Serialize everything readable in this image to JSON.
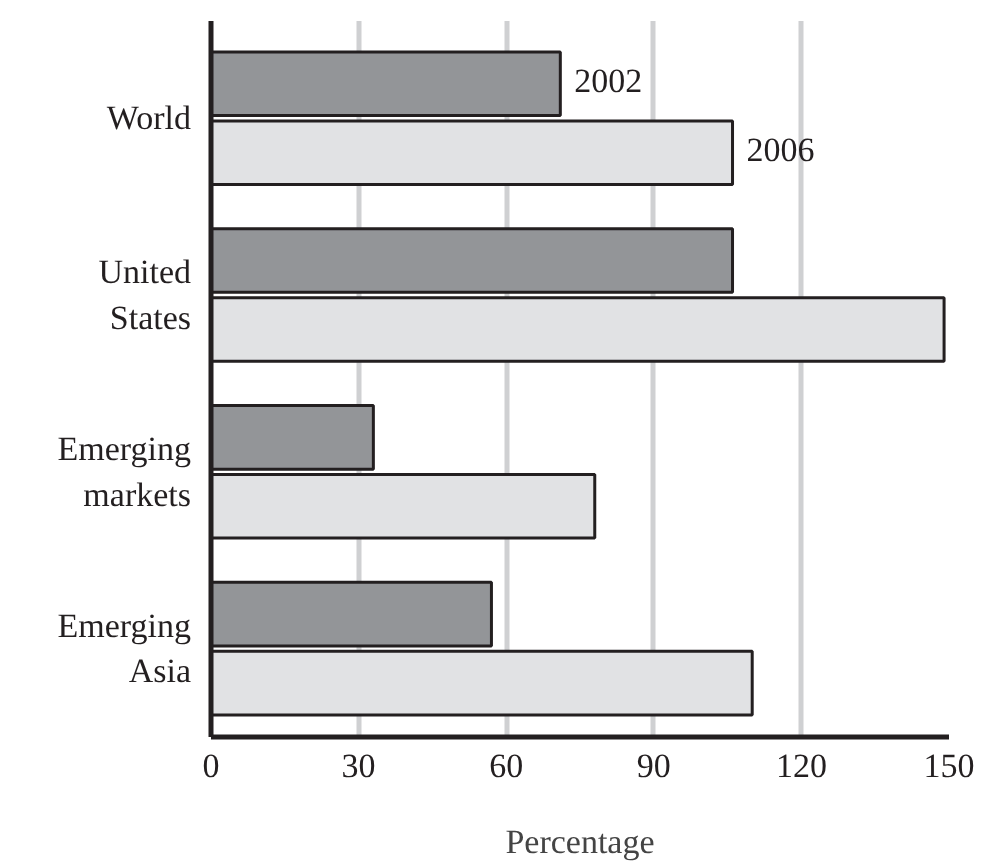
{
  "chart_data": {
    "type": "bar",
    "orientation": "horizontal",
    "xlabel": "Percentage",
    "categories": [
      "World",
      "United\nStates",
      "Emerging\nmarkets",
      "Emerging\nAsia"
    ],
    "series": [
      {
        "name": "2002",
        "color": "#939598",
        "values": [
          71,
          106,
          33,
          57
        ]
      },
      {
        "name": "2006",
        "color": "#e1e2e4",
        "values": [
          106,
          149,
          78,
          110
        ]
      }
    ],
    "xlim": [
      0,
      150
    ],
    "xticks": [
      0,
      30,
      60,
      90,
      120,
      150
    ],
    "grid": "x",
    "legend": false
  }
}
